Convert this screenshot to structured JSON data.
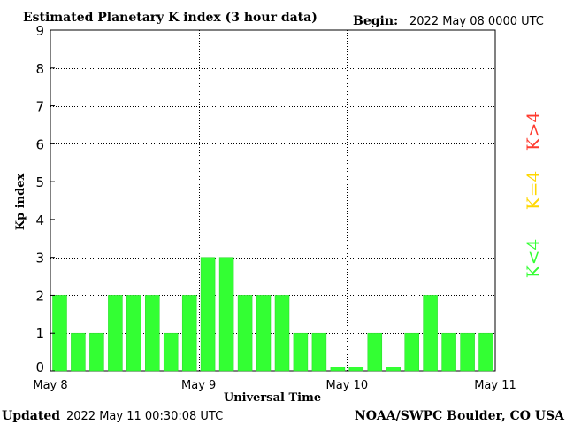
{
  "header": {
    "title": "Estimated Planetary K index (3 hour data)",
    "begin_label": "Begin:",
    "begin_value": "2022 May 08 0000 UTC"
  },
  "footer": {
    "updated_label": "Updated",
    "updated_value": "2022 May 11 00:30:08 UTC",
    "source": "NOAA/SWPC Boulder, CO USA"
  },
  "legend": {
    "items": [
      {
        "label": "K>4",
        "color": "#ff3b2f"
      },
      {
        "label": "K=4",
        "color": "#ffd700"
      },
      {
        "label": "K<4",
        "color": "#33ff33"
      }
    ]
  },
  "colors": {
    "bar": "#33ff33",
    "bar_stroke": "#2ad52a",
    "grid": "#000000"
  },
  "chart_data": {
    "type": "bar",
    "title": "Estimated Planetary K index (3 hour data)",
    "xlabel": "Universal Time",
    "ylabel": "Kp index",
    "ylim": [
      0,
      9
    ],
    "yticks": [
      0,
      1,
      2,
      3,
      4,
      5,
      6,
      7,
      8,
      9
    ],
    "xticks": [
      "May 8",
      "May 9",
      "May 10",
      "May 11"
    ],
    "interval_hours": 3,
    "grid": true,
    "values": [
      2,
      1,
      1,
      2,
      2,
      2,
      1,
      2,
      3,
      3,
      2,
      2,
      2,
      1,
      1,
      0.1,
      0.1,
      1,
      0.1,
      1,
      2,
      1,
      1,
      1
    ]
  }
}
